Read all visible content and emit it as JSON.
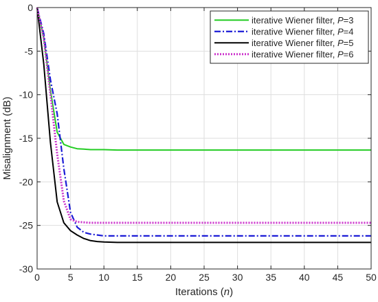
{
  "chart_data": {
    "type": "line",
    "title": "",
    "xlabel": "Iterations (",
    "xlabel_var": "n",
    "xlabel_end": ")",
    "ylabel": "Misalignment (dB)",
    "xlim": [
      0,
      50
    ],
    "ylim": [
      -30,
      0
    ],
    "xticks": [
      0,
      5,
      10,
      15,
      20,
      25,
      30,
      35,
      40,
      45,
      50
    ],
    "yticks": [
      0,
      -5,
      -10,
      -15,
      -20,
      -25,
      -30
    ],
    "grid": true,
    "legend_position": "top-right",
    "series": [
      {
        "name": "iterative Wiener filter, ",
        "param": "P",
        "param_value": "=3",
        "color": "#22cc22",
        "dash": "solid",
        "x": [
          0,
          1,
          2,
          3,
          4,
          5,
          6,
          7,
          8,
          10,
          12,
          15,
          20,
          30,
          40,
          50
        ],
        "y": [
          0,
          -3.5,
          -9.5,
          -14.3,
          -15.7,
          -16.0,
          -16.2,
          -16.25,
          -16.3,
          -16.3,
          -16.35,
          -16.35,
          -16.35,
          -16.35,
          -16.35,
          -16.35
        ]
      },
      {
        "name": "iterative Wiener filter, ",
        "param": "P",
        "param_value": "=4",
        "color": "#1a1ad6",
        "dash": "dashdot",
        "x": [
          0,
          1,
          2,
          3,
          4,
          5,
          6,
          7,
          8,
          10,
          12,
          15,
          20,
          30,
          40,
          50
        ],
        "y": [
          0,
          -3.0,
          -8.3,
          -12.2,
          -18.5,
          -23.5,
          -25.2,
          -25.8,
          -26.0,
          -26.2,
          -26.2,
          -26.2,
          -26.2,
          -26.2,
          -26.2,
          -26.2
        ]
      },
      {
        "name": "iterative Wiener filter, ",
        "param": "P",
        "param_value": "=5",
        "color": "#000000",
        "dash": "solid",
        "x": [
          0,
          1,
          2,
          3,
          4,
          5,
          6,
          7,
          8,
          9,
          10,
          12,
          15,
          20,
          30,
          40,
          50
        ],
        "y": [
          0,
          -6.5,
          -15.5,
          -22.3,
          -24.7,
          -25.6,
          -26.1,
          -26.5,
          -26.75,
          -26.85,
          -26.9,
          -26.95,
          -26.95,
          -26.95,
          -26.95,
          -26.95,
          -26.95
        ]
      },
      {
        "name": "iterative Wiener filter, ",
        "param": "P",
        "param_value": "=6",
        "color": "#cc33cc",
        "dash": "dotted",
        "x": [
          0,
          1,
          2,
          3,
          4,
          5,
          6,
          7,
          8,
          10,
          12,
          15,
          20,
          30,
          40,
          50
        ],
        "y": [
          0,
          -3.5,
          -10.0,
          -16.8,
          -22.2,
          -24.3,
          -24.6,
          -24.65,
          -24.7,
          -24.7,
          -24.7,
          -24.7,
          -24.7,
          -24.7,
          -24.7,
          -24.7
        ]
      }
    ]
  }
}
